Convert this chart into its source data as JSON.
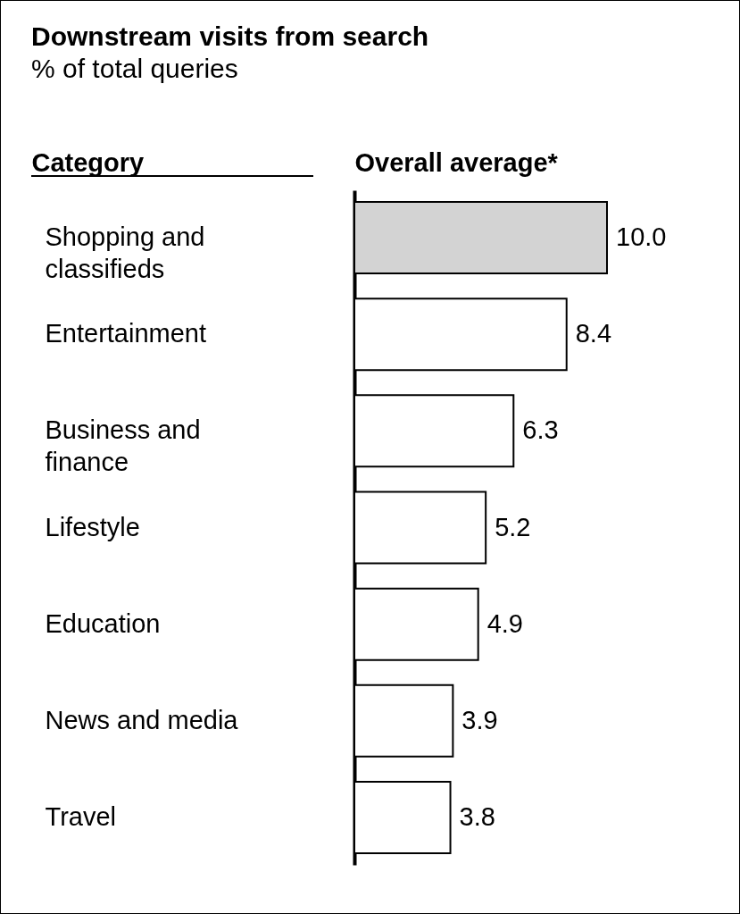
{
  "chart_data": {
    "type": "bar",
    "orientation": "horizontal",
    "title": "Downstream visits from search",
    "subtitle": "% of total queries",
    "ylabel": "Category",
    "xlabel": "Overall average*",
    "tick_labels": "y",
    "categories": [
      "Shopping and classifieds",
      "Entertainment",
      "Business and finance",
      "Lifestyle",
      "Education",
      "News and media",
      "Travel"
    ],
    "values": [
      10.0,
      8.4,
      6.3,
      5.2,
      4.9,
      3.9,
      3.8
    ],
    "value_labels": [
      "10.0",
      "8.4",
      "6.3",
      "5.2",
      "4.9",
      "3.9",
      "3.8"
    ],
    "colors": [
      "#d3d3d3",
      "#ffffff",
      "#ffffff",
      "#ffffff",
      "#ffffff",
      "#ffffff",
      "#ffffff"
    ]
  }
}
